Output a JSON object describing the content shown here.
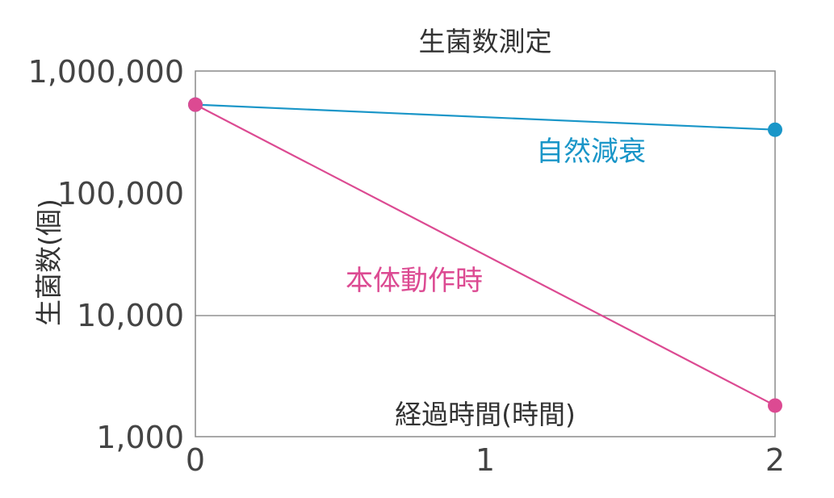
{
  "chart_data": {
    "type": "line",
    "title": "生菌数測定",
    "xlabel": "経過時間(時間)",
    "ylabel": "生菌数(個)",
    "x": [
      0,
      2
    ],
    "xticks": [
      "0",
      "1",
      "2"
    ],
    "xlim": [
      0,
      2
    ],
    "yscale": "log",
    "ylim": [
      1000,
      1000000
    ],
    "yticks": [
      "1,000",
      "10,000",
      "100,000",
      "1,000,000"
    ],
    "grid": "horizontal line at 10,000",
    "series": [
      {
        "name": "自然減衰",
        "color": "#1a96c8",
        "points": [
          {
            "x": 0,
            "y": 530000
          },
          {
            "x": 2,
            "y": 330000
          }
        ]
      },
      {
        "name": "本体動作時",
        "color": "#dc4a92",
        "points": [
          {
            "x": 0,
            "y": 530000
          },
          {
            "x": 2,
            "y": 1800
          }
        ]
      }
    ]
  }
}
